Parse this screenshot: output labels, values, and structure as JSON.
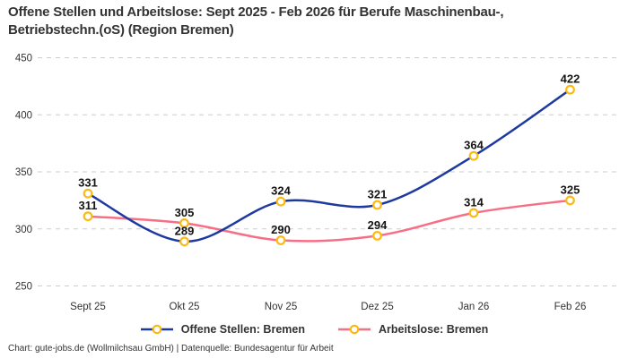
{
  "page": {
    "footer": "Chart: gute-jobs.de (Wollmilchsau GmbH) | Datenquelle: Bundesagentur für Arbeit"
  },
  "colors": {
    "background": "#ffffff",
    "grid": "#cccccc",
    "axis_text": "#333333",
    "data_label_text": "#141414",
    "title_text": "#333333",
    "open_positions_blue": "#1e3a9f",
    "unemployed_pink": "#f76f85",
    "marker_gold": "#fdb913"
  },
  "chart_data": {
    "type": "line",
    "title": "Offene Stellen und Arbeitslose: Sept 2025 - Feb 2026 für Berufe Maschinenbau-, Betriebstechn.(oS) (Region Bremen)",
    "categories": [
      "Sept 25",
      "Okt 25",
      "Nov 25",
      "Dez 25",
      "Jan 26",
      "Feb 26"
    ],
    "series": [
      {
        "name": "Offene Stellen: Bremen",
        "color": "#1e3a9f",
        "values": [
          331,
          289,
          324,
          321,
          364,
          422
        ]
      },
      {
        "name": "Arbeitslose: Bremen",
        "color": "#f76f85",
        "values": [
          311,
          305,
          290,
          294,
          314,
          325
        ]
      }
    ],
    "ylim": [
      250,
      450
    ],
    "yticks": [
      250,
      300,
      350,
      400,
      450
    ],
    "xlabel": "",
    "ylabel": "",
    "grid": true,
    "gridline_style": "dashed",
    "curve": "smooth",
    "data_labels": true,
    "marker": {
      "shape": "circle",
      "fill": "#ffffff",
      "stroke": "#fdb913"
    },
    "legend_position": "bottom"
  }
}
